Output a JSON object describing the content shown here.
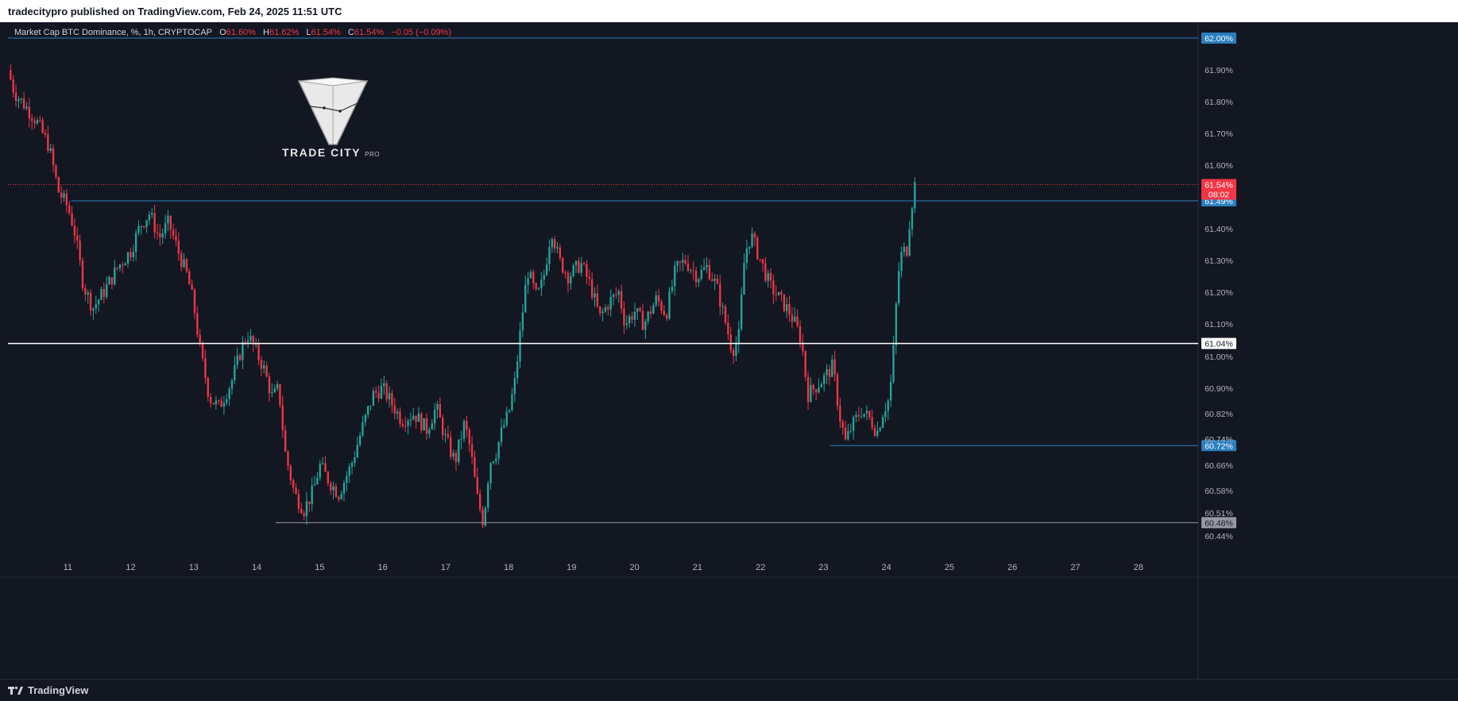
{
  "header": {
    "published_text": "tradecitypro published on TradingView.com, Feb 24, 2025 11:51 UTC"
  },
  "legend": {
    "symbol": "Market Cap BTC Dominance, %, 1h, CRYPTOCAP",
    "open_label": "O",
    "open_value": "61.60%",
    "high_label": "H",
    "high_value": "61.62%",
    "low_label": "L",
    "low_value": "61.54%",
    "close_label": "C",
    "close_value": "61.54%",
    "change": "−0.05 (−0.09%)"
  },
  "watermark": {
    "brand": "TRADE CITY",
    "suffix": "PRO"
  },
  "footer": {
    "brand": "TradingView"
  },
  "colors": {
    "background": "#131722",
    "bull": "#26a69a",
    "bear": "#f23645",
    "level_blue": "#2a7fc0",
    "level_white": "#ffffff",
    "level_gray": "#787b86",
    "price_tag_red": "#f23645"
  },
  "chart_data": {
    "type": "candlestick",
    "ylim": [
      60.4,
      62.02
    ],
    "xlim": [
      10.05,
      28.95
    ],
    "x_ticks": [
      {
        "value": 11,
        "label": "11"
      },
      {
        "value": 12,
        "label": "12"
      },
      {
        "value": 13,
        "label": "13"
      },
      {
        "value": 14,
        "label": "14"
      },
      {
        "value": 15,
        "label": "15"
      },
      {
        "value": 16,
        "label": "16"
      },
      {
        "value": 17,
        "label": "17"
      },
      {
        "value": 18,
        "label": "18"
      },
      {
        "value": 19,
        "label": "19"
      },
      {
        "value": 20,
        "label": "20"
      },
      {
        "value": 21,
        "label": "21"
      },
      {
        "value": 22,
        "label": "22"
      },
      {
        "value": 23,
        "label": "23"
      },
      {
        "value": 24,
        "label": "24"
      },
      {
        "value": 25,
        "label": "25"
      },
      {
        "value": 26,
        "label": "26"
      },
      {
        "value": 27,
        "label": "27"
      },
      {
        "value": 28,
        "label": "28"
      }
    ],
    "y_ticks": [
      {
        "value": 61.9,
        "label": "61.90%"
      },
      {
        "value": 61.8,
        "label": "61.80%"
      },
      {
        "value": 61.7,
        "label": "61.70%"
      },
      {
        "value": 61.6,
        "label": "61.60%"
      },
      {
        "value": 61.4,
        "label": "61.40%"
      },
      {
        "value": 61.3,
        "label": "61.30%"
      },
      {
        "value": 61.2,
        "label": "61.20%"
      },
      {
        "value": 61.1,
        "label": "61.10%"
      },
      {
        "value": 61.0,
        "label": "61.00%"
      },
      {
        "value": 60.9,
        "label": "60.90%"
      },
      {
        "value": 60.82,
        "label": "60.82%"
      },
      {
        "value": 60.74,
        "label": "60.74%"
      },
      {
        "value": 60.66,
        "label": "60.66%"
      },
      {
        "value": 60.58,
        "label": "60.58%"
      },
      {
        "value": 60.51,
        "label": "60.51%"
      },
      {
        "value": 60.44,
        "label": "60.44%"
      }
    ],
    "levels": [
      {
        "value": 62.0,
        "label": "62.00%",
        "color": "#2a7fc0",
        "x_start": 10.05,
        "tag_text_color": "#ffffff"
      },
      {
        "value": 61.49,
        "label": "61.49%",
        "color": "#2a7fc0",
        "x_start": 11.05,
        "tag_text_color": "#ffffff"
      },
      {
        "value": 61.04,
        "label": "61.04%",
        "color": "#ffffff",
        "x_start": 10.05,
        "tag_text_color": "#131722"
      },
      {
        "value": 60.72,
        "label": "60.72%",
        "color": "#2a7fc0",
        "x_start": 23.1,
        "tag_text_color": "#ffffff"
      },
      {
        "value": 60.48,
        "label": "60.48%",
        "color": "#9598a1",
        "x_start": 14.3,
        "tag_text_color": "#131722"
      }
    ],
    "last_price": {
      "value": 61.54,
      "label": "61.54%",
      "countdown": "08:02"
    },
    "anchors": [
      [
        10.05,
        61.9
      ],
      [
        10.15,
        61.83
      ],
      [
        10.35,
        61.78
      ],
      [
        10.5,
        61.74
      ],
      [
        10.7,
        61.66
      ],
      [
        10.85,
        61.52
      ],
      [
        11.0,
        61.47
      ],
      [
        11.1,
        61.4
      ],
      [
        11.25,
        61.22
      ],
      [
        11.4,
        61.15
      ],
      [
        11.6,
        61.21
      ],
      [
        11.8,
        61.28
      ],
      [
        12.0,
        61.33
      ],
      [
        12.15,
        61.41
      ],
      [
        12.3,
        61.45
      ],
      [
        12.45,
        61.37
      ],
      [
        12.6,
        61.42
      ],
      [
        12.75,
        61.33
      ],
      [
        12.9,
        61.25
      ],
      [
        13.0,
        61.16
      ],
      [
        13.1,
        61.02
      ],
      [
        13.25,
        60.87
      ],
      [
        13.4,
        60.84
      ],
      [
        13.6,
        60.92
      ],
      [
        13.75,
        61.02
      ],
      [
        13.85,
        61.07
      ],
      [
        13.95,
        61.03
      ],
      [
        14.1,
        60.97
      ],
      [
        14.25,
        60.87
      ],
      [
        14.35,
        60.9
      ],
      [
        14.45,
        60.7
      ],
      [
        14.6,
        60.57
      ],
      [
        14.75,
        60.52
      ],
      [
        14.9,
        60.58
      ],
      [
        15.0,
        60.66
      ],
      [
        15.15,
        60.61
      ],
      [
        15.3,
        60.57
      ],
      [
        15.5,
        60.66
      ],
      [
        15.7,
        60.79
      ],
      [
        15.85,
        60.88
      ],
      [
        16.0,
        60.9
      ],
      [
        16.15,
        60.85
      ],
      [
        16.3,
        60.8
      ],
      [
        16.5,
        60.82
      ],
      [
        16.7,
        60.77
      ],
      [
        16.85,
        60.84
      ],
      [
        17.0,
        60.74
      ],
      [
        17.15,
        60.67
      ],
      [
        17.3,
        60.79
      ],
      [
        17.4,
        60.7
      ],
      [
        17.5,
        60.56
      ],
      [
        17.6,
        60.48
      ],
      [
        17.7,
        60.67
      ],
      [
        17.8,
        60.7
      ],
      [
        17.9,
        60.77
      ],
      [
        18.0,
        60.82
      ],
      [
        18.1,
        60.92
      ],
      [
        18.2,
        61.1
      ],
      [
        18.3,
        61.27
      ],
      [
        18.45,
        61.18
      ],
      [
        18.55,
        61.24
      ],
      [
        18.68,
        61.4
      ],
      [
        18.8,
        61.3
      ],
      [
        18.95,
        61.25
      ],
      [
        19.15,
        61.29
      ],
      [
        19.3,
        61.22
      ],
      [
        19.45,
        61.12
      ],
      [
        19.6,
        61.17
      ],
      [
        19.75,
        61.2
      ],
      [
        19.85,
        61.1
      ],
      [
        20.0,
        61.14
      ],
      [
        20.15,
        61.1
      ],
      [
        20.35,
        61.18
      ],
      [
        20.5,
        61.13
      ],
      [
        20.65,
        61.27
      ],
      [
        20.8,
        61.3
      ],
      [
        21.0,
        61.25
      ],
      [
        21.15,
        61.28
      ],
      [
        21.3,
        61.22
      ],
      [
        21.45,
        61.1
      ],
      [
        21.55,
        61.02
      ],
      [
        21.65,
        61.05
      ],
      [
        21.75,
        61.32
      ],
      [
        21.85,
        61.38
      ],
      [
        22.0,
        61.3
      ],
      [
        22.15,
        61.22
      ],
      [
        22.3,
        61.18
      ],
      [
        22.45,
        61.14
      ],
      [
        22.55,
        61.1
      ],
      [
        22.65,
        61.05
      ],
      [
        22.75,
        60.88
      ],
      [
        22.85,
        60.9
      ],
      [
        23.0,
        60.93
      ],
      [
        23.15,
        60.97
      ],
      [
        23.25,
        60.82
      ],
      [
        23.35,
        60.73
      ],
      [
        23.45,
        60.78
      ],
      [
        23.6,
        60.83
      ],
      [
        23.75,
        60.8
      ],
      [
        23.85,
        60.76
      ],
      [
        23.95,
        60.83
      ],
      [
        24.05,
        60.87
      ],
      [
        24.12,
        61.04
      ],
      [
        24.18,
        61.25
      ],
      [
        24.25,
        61.33
      ],
      [
        24.32,
        61.33
      ],
      [
        24.38,
        61.45
      ],
      [
        24.45,
        61.54
      ]
    ]
  }
}
